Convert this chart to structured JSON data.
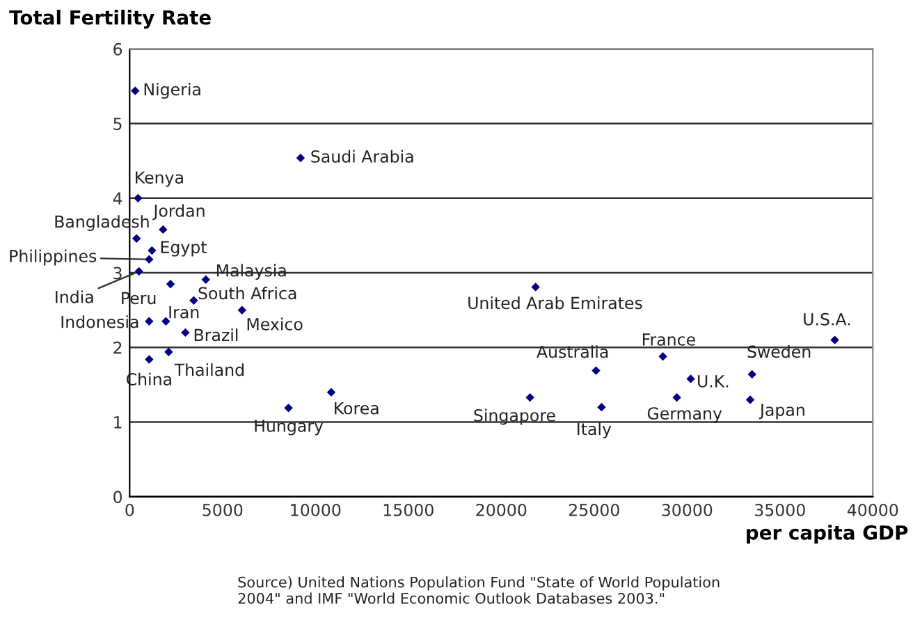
{
  "chart_data": {
    "type": "scatter",
    "ylabel": "Total Fertility Rate",
    "xlabel": "per capita GDP",
    "x": [
      300,
      9200,
      450,
      370,
      1800,
      1200,
      1050,
      500,
      2200,
      4100,
      3450,
      6050,
      1050,
      1950,
      3000,
      1050,
      2100,
      8550,
      10850,
      21850,
      21550,
      25100,
      25400,
      28700,
      30200,
      29450,
      33500,
      33400,
      37950
    ],
    "series": [
      {
        "color": "#000080",
        "values": [
          5.44,
          4.54,
          4.0,
          3.46,
          3.58,
          3.3,
          3.18,
          3.02,
          2.85,
          2.91,
          2.63,
          2.5,
          2.35,
          2.35,
          2.2,
          1.84,
          1.94,
          1.19,
          1.4,
          2.81,
          1.33,
          1.69,
          1.2,
          1.88,
          1.58,
          1.33,
          1.64,
          1.3,
          2.1
        ]
      }
    ],
    "annotations": [
      {
        "text": "Nigeria",
        "x": 300,
        "y": 5.44
      },
      {
        "text": "Saudi Arabia",
        "x": 9200,
        "y": 4.54
      },
      {
        "text": "Kenya",
        "x": 450,
        "y": 4.0
      },
      {
        "text": "Bangladesh",
        "x": 370,
        "y": 3.46
      },
      {
        "text": "Jordan",
        "x": 1800,
        "y": 3.58
      },
      {
        "text": "Egypt",
        "x": 1200,
        "y": 3.3
      },
      {
        "text": "Philippines",
        "x": 1050,
        "y": 3.18
      },
      {
        "text": "India",
        "x": 500,
        "y": 3.02
      },
      {
        "text": "Peru",
        "x": 2200,
        "y": 2.85
      },
      {
        "text": "Malaysia",
        "x": 4100,
        "y": 2.91
      },
      {
        "text": "South Africa",
        "x": 3450,
        "y": 2.63
      },
      {
        "text": "Mexico",
        "x": 6050,
        "y": 2.5
      },
      {
        "text": "Indonesia",
        "x": 1050,
        "y": 2.35
      },
      {
        "text": "Iran",
        "x": 1950,
        "y": 2.35
      },
      {
        "text": "Brazil",
        "x": 3000,
        "y": 2.2
      },
      {
        "text": "China",
        "x": 1050,
        "y": 1.84
      },
      {
        "text": "Thailand",
        "x": 2100,
        "y": 1.94
      },
      {
        "text": "Hungary",
        "x": 8550,
        "y": 1.19
      },
      {
        "text": "Korea",
        "x": 10850,
        "y": 1.4
      },
      {
        "text": "United Arab Emirates",
        "x": 21850,
        "y": 2.81
      },
      {
        "text": "Singapore",
        "x": 21550,
        "y": 1.33
      },
      {
        "text": "Australia",
        "x": 25100,
        "y": 1.69
      },
      {
        "text": "Italy",
        "x": 25400,
        "y": 1.2
      },
      {
        "text": "France",
        "x": 28700,
        "y": 1.88
      },
      {
        "text": "U.K.",
        "x": 30200,
        "y": 1.58
      },
      {
        "text": "Germany",
        "x": 29450,
        "y": 1.33
      },
      {
        "text": "Sweden",
        "x": 33500,
        "y": 1.64
      },
      {
        "text": "Japan",
        "x": 33400,
        "y": 1.3
      },
      {
        "text": "U.S.A.",
        "x": 37950,
        "y": 2.1
      },
      "Source) United Nations Population Fund \"State of World Population\n2004\" and IMF \"World Economic Outlook Databases 2003.\""
    ],
    "xlim": [
      0,
      40000
    ],
    "xticks": [
      0,
      5000,
      10000,
      15000,
      20000,
      25000,
      30000,
      35000,
      40000
    ],
    "ylim": [
      0,
      6
    ],
    "yticks": [
      0,
      1,
      2,
      3,
      4,
      5,
      6
    ],
    "grid": "y",
    "marker": "diamond"
  }
}
